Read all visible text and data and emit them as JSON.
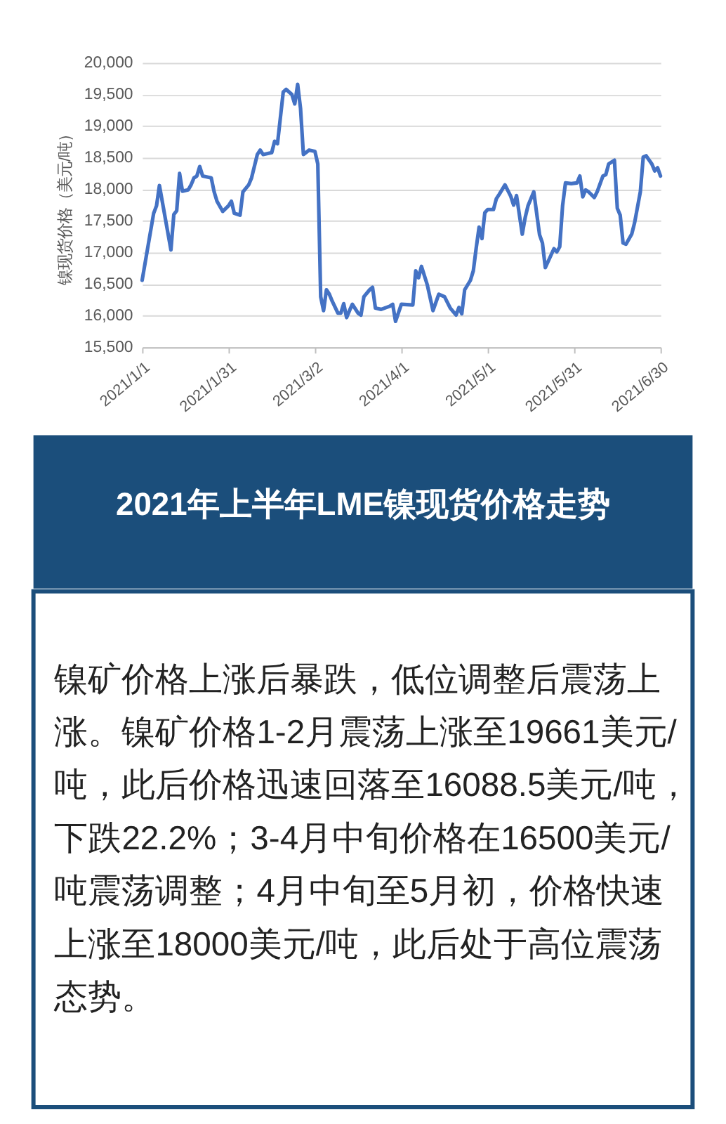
{
  "chart_data": {
    "type": "line",
    "title": "2021年上半年LME镍现货价格走势",
    "ylabel": "镍现货价格（美元/吨）",
    "x": [
      "2021-01-01",
      "2021-01-05",
      "2021-01-06",
      "2021-01-07",
      "2021-01-11",
      "2021-01-12",
      "2021-01-13",
      "2021-01-14",
      "2021-01-15",
      "2021-01-17",
      "2021-01-18",
      "2021-01-19",
      "2021-01-20",
      "2021-01-21",
      "2021-01-22",
      "2021-01-25",
      "2021-01-26",
      "2021-01-27",
      "2021-01-29",
      "2021-01-31",
      "2021-02-01",
      "2021-02-02",
      "2021-02-04",
      "2021-02-05",
      "2021-02-07",
      "2021-02-08",
      "2021-02-10",
      "2021-02-11",
      "2021-02-12",
      "2021-02-15",
      "2021-02-16",
      "2021-02-17",
      "2021-02-18",
      "2021-02-19",
      "2021-02-20",
      "2021-02-22",
      "2021-02-23",
      "2021-02-24",
      "2021-02-25",
      "2021-02-26",
      "2021-02-28",
      "2021-03-02",
      "2021-03-03",
      "2021-03-04",
      "2021-03-05",
      "2021-03-06",
      "2021-03-07",
      "2021-03-08",
      "2021-03-10",
      "2021-03-11",
      "2021-03-12",
      "2021-03-13",
      "2021-03-14",
      "2021-03-15",
      "2021-03-17",
      "2021-03-18",
      "2021-03-19",
      "2021-03-21",
      "2021-03-22",
      "2021-03-23",
      "2021-03-25",
      "2021-03-28",
      "2021-03-29",
      "2021-03-30",
      "2021-04-01",
      "2021-04-05",
      "2021-04-06",
      "2021-04-07",
      "2021-04-08",
      "2021-04-10",
      "2021-04-12",
      "2021-04-14",
      "2021-04-16",
      "2021-04-18",
      "2021-04-20",
      "2021-04-21",
      "2021-04-22",
      "2021-04-23",
      "2021-04-25",
      "2021-04-26",
      "2021-04-27",
      "2021-04-28",
      "2021-04-29",
      "2021-04-30",
      "2021-05-01",
      "2021-05-03",
      "2021-05-04",
      "2021-05-05",
      "2021-05-07",
      "2021-05-09",
      "2021-05-10",
      "2021-05-11",
      "2021-05-13",
      "2021-05-14",
      "2021-05-15",
      "2021-05-17",
      "2021-05-19",
      "2021-05-20",
      "2021-05-21",
      "2021-05-22",
      "2021-05-24",
      "2021-05-25",
      "2021-05-26",
      "2021-05-27",
      "2021-05-28",
      "2021-05-30",
      "2021-06-01",
      "2021-06-02",
      "2021-06-03",
      "2021-06-04",
      "2021-06-05",
      "2021-06-07",
      "2021-06-08",
      "2021-06-10",
      "2021-06-11",
      "2021-06-12",
      "2021-06-14",
      "2021-06-15",
      "2021-06-16",
      "2021-06-17",
      "2021-06-18",
      "2021-06-20",
      "2021-06-21",
      "2021-06-23",
      "2021-06-24",
      "2021-06-25",
      "2021-06-27",
      "2021-06-28",
      "2021-06-29",
      "2021-06-30"
    ],
    "series": [
      {
        "color": "#4472c4",
        "values": [
          16560,
          17620,
          17740,
          18060,
          17040,
          17600,
          17660,
          18250,
          17970,
          17990,
          18070,
          18180,
          18210,
          18360,
          18210,
          18180,
          17960,
          17810,
          17650,
          17740,
          17810,
          17620,
          17590,
          17960,
          18070,
          18180,
          18550,
          18620,
          18550,
          18580,
          18760,
          18720,
          19130,
          19540,
          19580,
          19500,
          19350,
          19660,
          19280,
          18550,
          18620,
          18600,
          18400,
          16300,
          16080,
          16410,
          16340,
          16230,
          16040,
          16040,
          16190,
          15970,
          16080,
          16180,
          16040,
          16010,
          16300,
          16410,
          16450,
          16120,
          16100,
          16150,
          16180,
          15910,
          16180,
          16170,
          16710,
          16600,
          16780,
          16490,
          16080,
          16340,
          16300,
          16120,
          16010,
          16130,
          16030,
          16410,
          16560,
          16710,
          17070,
          17400,
          17220,
          17630,
          17680,
          17680,
          17850,
          17920,
          18070,
          17890,
          17750,
          17900,
          17290,
          17550,
          17740,
          17960,
          17280,
          17150,
          16760,
          16860,
          17060,
          17010,
          17090,
          17740,
          18100,
          18090,
          18100,
          18210,
          17880,
          17990,
          17960,
          17870,
          17960,
          18210,
          18230,
          18400,
          18460,
          17700,
          17590,
          17150,
          17130,
          17290,
          17470,
          17960,
          18510,
          18530,
          18400,
          18290,
          18340,
          18210
        ]
      }
    ],
    "xlim": [
      "2021-01-01",
      "2021-06-30"
    ],
    "xticks": [
      {
        "value": "2021-01-01",
        "label": "2021/1/1"
      },
      {
        "value": "2021-01-31",
        "label": "2021/1/31"
      },
      {
        "value": "2021-03-02",
        "label": "2021/3/2"
      },
      {
        "value": "2021-04-01",
        "label": "2021/4/1"
      },
      {
        "value": "2021-05-01",
        "label": "2021/5/1"
      },
      {
        "value": "2021-05-31",
        "label": "2021/5/31"
      },
      {
        "value": "2021-06-30",
        "label": "2021/6/30"
      }
    ],
    "ylim": [
      15500,
      20000
    ],
    "yticks": [
      {
        "value": 15500,
        "label": "15,500"
      },
      {
        "value": 16000,
        "label": "16,000"
      },
      {
        "value": 16500,
        "label": "16,500"
      },
      {
        "value": 17000,
        "label": "17,000"
      },
      {
        "value": 17500,
        "label": "17,500"
      },
      {
        "value": 18000,
        "label": "18,000"
      },
      {
        "value": 18500,
        "label": "18,500"
      },
      {
        "value": 19000,
        "label": "19,000"
      },
      {
        "value": 19500,
        "label": "19,500"
      },
      {
        "value": 20000,
        "label": "20,000"
      }
    ],
    "grid": "y",
    "annotations": [
      "镍矿价格上涨后暴跌，低位调整后震荡上涨。镍矿价格1-2月震荡上涨至19661美元/吨，此后价格迅速回落至16088.5美元/吨，下跌22.2%；3-4月中旬价格在16500美元/吨震荡调整；4月中旬至5月初，价格快速上涨至18000美元/吨，此后处于高位震荡态势。"
    ]
  }
}
